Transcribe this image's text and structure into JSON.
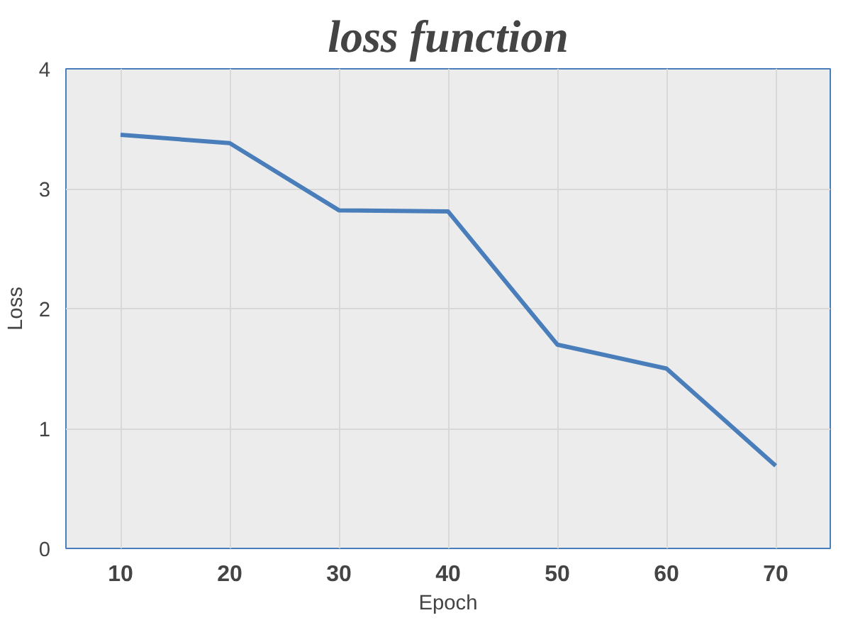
{
  "chart_data": {
    "type": "line",
    "title": "loss function",
    "xlabel": "Epoch",
    "ylabel": "Loss",
    "categories": [
      "10",
      "20",
      "30",
      "40",
      "50",
      "60",
      "70"
    ],
    "series": [
      {
        "color": "#4a7ebb",
        "values": [
          3.45,
          3.38,
          2.82,
          2.81,
          1.7,
          1.5,
          0.69
        ]
      }
    ],
    "ylim": [
      0,
      4
    ],
    "yticks": [
      0,
      1,
      2,
      3,
      4
    ],
    "grid": true,
    "marker": "none",
    "line_style": "solid"
  }
}
